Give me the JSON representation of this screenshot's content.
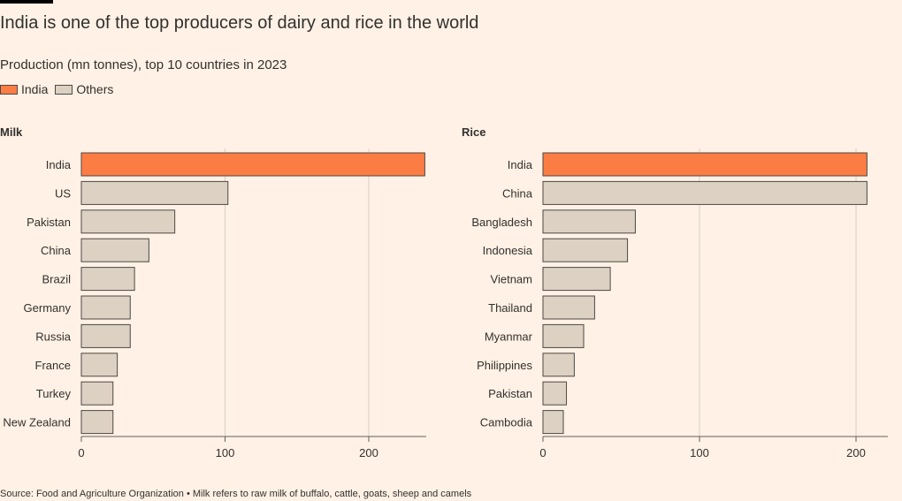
{
  "title": "India is one of the top producers of dairy and rice in the world",
  "subtitle": "Production (mn tonnes), top 10 countries in 2023",
  "legend": [
    {
      "label": "India",
      "color": "#fc7d43"
    },
    {
      "label": "Others",
      "color": "#ddd1c3"
    }
  ],
  "source": "Source: Food and Agriculture Organization • Milk refers to raw milk of buffalo, cattle, goats, sheep and camels",
  "colors": {
    "highlight": "#fc7d43",
    "other": "#ddd1c3",
    "stroke": "#4d4845",
    "grid": "#d9cfc5",
    "axis": "#66605c"
  },
  "chart_data": [
    {
      "type": "bar",
      "orientation": "horizontal",
      "title": "Milk",
      "categories": [
        "India",
        "US",
        "Pakistan",
        "China",
        "Brazil",
        "Germany",
        "Russia",
        "France",
        "Turkey",
        "New Zealand"
      ],
      "values": [
        239,
        102,
        65,
        47,
        37,
        34,
        34,
        25,
        22,
        22
      ],
      "highlight": "India",
      "xticks": [
        0,
        100,
        200
      ],
      "xlim": [
        0,
        240
      ],
      "grid": true
    },
    {
      "type": "bar",
      "orientation": "horizontal",
      "title": "Rice",
      "categories": [
        "India",
        "China",
        "Bangladesh",
        "Indonesia",
        "Vietnam",
        "Thailand",
        "Myanmar",
        "Philippines",
        "Pakistan",
        "Cambodia"
      ],
      "values": [
        207,
        207,
        59,
        54,
        43,
        33,
        26,
        20,
        15,
        13
      ],
      "highlight": "India",
      "xticks": [
        0,
        100,
        200
      ],
      "xlim": [
        0,
        220
      ],
      "grid": true
    }
  ]
}
